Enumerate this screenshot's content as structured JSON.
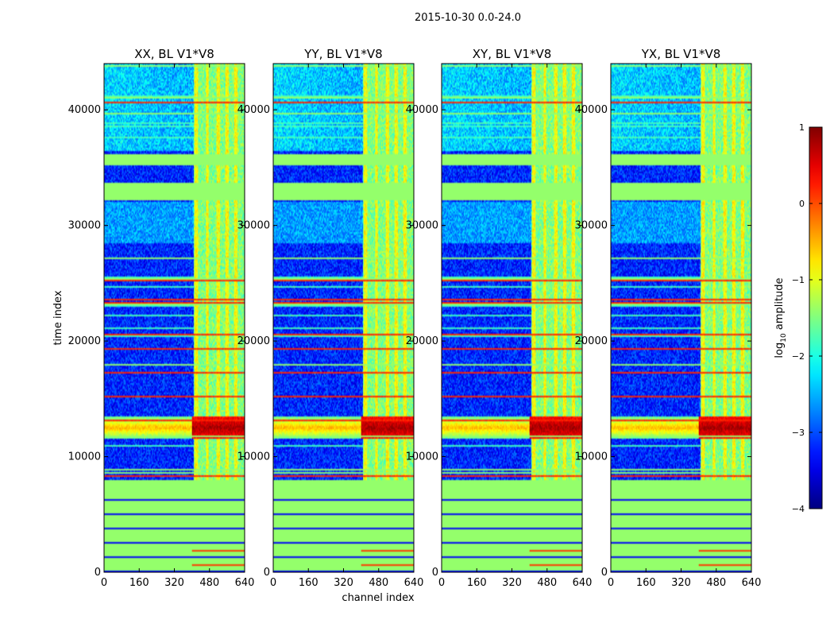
{
  "figure": {
    "suptitle": "2015-10-30 0.0-24.0",
    "xlabel": "channel index",
    "ylabel": "time index"
  },
  "colorbar": {
    "label_base": "log",
    "label_sub": "10",
    "label_rest": " amplitude",
    "min": -4,
    "max": 1,
    "ticks": [
      1,
      0,
      -1,
      -2,
      -3,
      -4
    ],
    "tick_labels": [
      "1",
      "0",
      "−1",
      "−2",
      "−3",
      "−4"
    ],
    "colormap": "jet"
  },
  "chart_data": {
    "type": "heatmap",
    "panels": [
      {
        "title": "XX, BL V1*V8",
        "id": "xx"
      },
      {
        "title": "YY, BL V1*V8",
        "id": "yy"
      },
      {
        "title": "XY, BL V1*V8",
        "id": "xy"
      },
      {
        "title": "YX, BL V1*V8",
        "id": "yx"
      }
    ],
    "xlim": [
      0,
      640
    ],
    "ylim": [
      0,
      44000
    ],
    "x_ticks": [
      0,
      160,
      320,
      480,
      640
    ],
    "x_tick_labels": [
      "0",
      "160",
      "320",
      "480",
      "640"
    ],
    "y_ticks": [
      0,
      10000,
      20000,
      30000,
      40000
    ],
    "y_tick_labels": [
      "0",
      "10000",
      "20000",
      "30000",
      "40000"
    ],
    "xlabel": "channel index",
    "ylabel": "time index",
    "colorbar_range": [
      -4,
      1
    ],
    "features": {
      "flat_flagged_rows_value": -1.4,
      "flat_flagged_bands": [
        [
          0,
          8000
        ],
        [
          32200,
          33700
        ],
        [
          35200,
          36200
        ]
      ],
      "rfi_channel_band": [
        410,
        640
      ],
      "rfi_channel_lines": [
        420,
        470,
        520,
        560,
        600
      ],
      "strong_interference_time_band": [
        11500,
        13500
      ],
      "background_level": -3.2
    }
  }
}
